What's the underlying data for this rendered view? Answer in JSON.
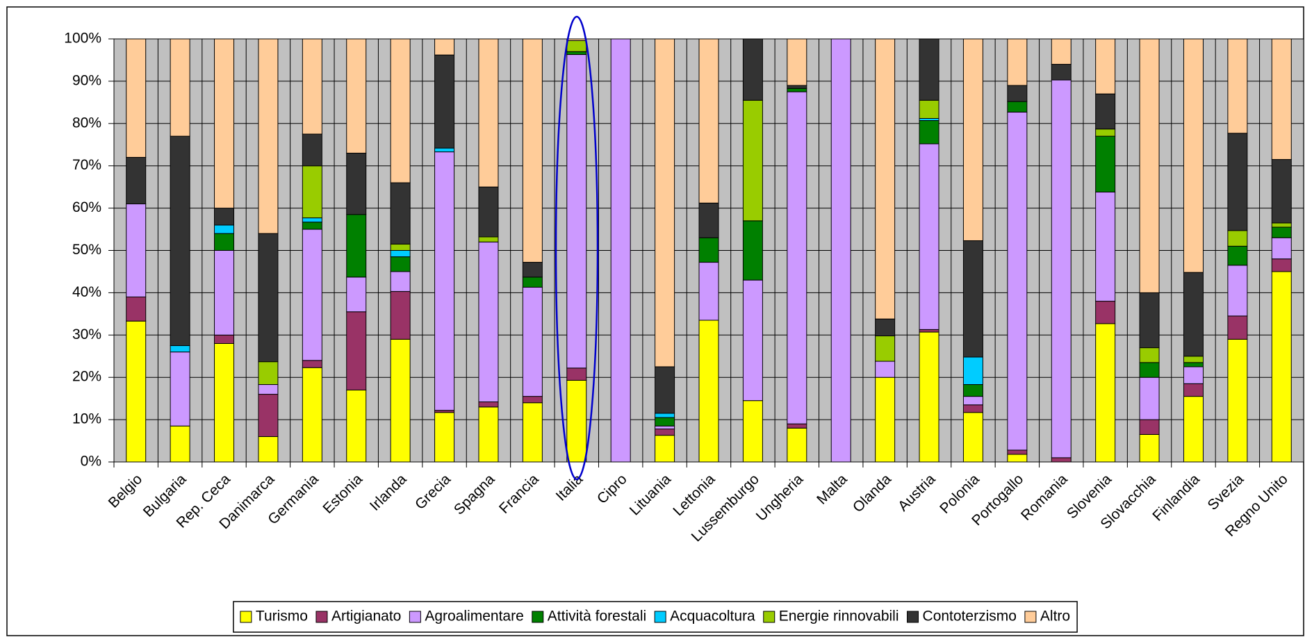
{
  "chart_data": {
    "type": "stacked_bar",
    "categories": [
      "Belgio",
      "Bulgaria",
      "Rep. Ceca",
      "Danimarca",
      "Germania",
      "Estonia",
      "Irlanda",
      "Grecia",
      "Spagna",
      "Francia",
      "Italia",
      "Cipro",
      "Lituania",
      "Lettonia",
      "Lussemburgo",
      "Ungheria",
      "Malta",
      "Olanda",
      "Austria",
      "Polonia",
      "Portogallo",
      "Romania",
      "Slovenia",
      "Slovacchia",
      "Finlandia",
      "Svezia",
      "Regno Unito"
    ],
    "series": [
      {
        "name": "Turismo",
        "color": "#ffff00",
        "values": [
          33.3,
          8.5,
          28,
          6,
          22.3,
          17,
          29,
          11.7,
          13,
          14,
          19.3,
          0,
          6.3,
          33.5,
          14.5,
          8,
          0,
          20,
          30.7,
          11.7,
          1.8,
          0,
          32.7,
          6.5,
          15.5,
          29,
          45
        ]
      },
      {
        "name": "Artigianato",
        "color": "#993366",
        "values": [
          5.7,
          0,
          2,
          10,
          1.7,
          18.5,
          11.3,
          0.5,
          1.2,
          1.5,
          2.9,
          0,
          1.5,
          0,
          0,
          1,
          0,
          0,
          0.6,
          1.8,
          1,
          1,
          5.3,
          3.5,
          3,
          5.5,
          3
        ]
      },
      {
        "name": "Agroalimentare",
        "color": "#cc99ff",
        "values": [
          22,
          17.5,
          20,
          2.3,
          31,
          8.2,
          4.7,
          61.1,
          37.8,
          25.8,
          74.1,
          100,
          0.7,
          13.7,
          28.5,
          78.5,
          100,
          3.8,
          43.9,
          2,
          79.9,
          89.3,
          25.8,
          10,
          4,
          12,
          5
        ]
      },
      {
        "name": "Attività forestali",
        "color": "#008000",
        "values": [
          0,
          0,
          4,
          0,
          1.7,
          14.8,
          3.5,
          0,
          0,
          2.4,
          0.7,
          0,
          2,
          5.8,
          14,
          0.8,
          0,
          0,
          5.5,
          2.8,
          2.5,
          0,
          13.2,
          3.5,
          1,
          4.5,
          2.5
        ]
      },
      {
        "name": "Acquacoltura",
        "color": "#00ccff",
        "values": [
          0,
          1.5,
          2,
          0,
          1,
          0,
          1.5,
          0.9,
          0,
          0,
          0,
          0,
          1,
          0,
          0,
          0,
          0,
          0,
          0.5,
          6.5,
          0,
          0,
          0,
          0,
          0,
          0,
          0
        ]
      },
      {
        "name": "Energie rinnovabili",
        "color": "#99cc00",
        "values": [
          0,
          0,
          0,
          5.4,
          12.3,
          0,
          1.5,
          0,
          1.2,
          0,
          2.6,
          0,
          0,
          0,
          28.5,
          0,
          0,
          6,
          4.3,
          0,
          0,
          0,
          1.7,
          3.5,
          1.5,
          3.7,
          1
        ]
      },
      {
        "name": "Contoterzismo",
        "color": "#333333",
        "values": [
          11,
          49.5,
          4,
          30.3,
          7.5,
          14.5,
          14.5,
          22,
          11.8,
          3.5,
          0,
          0,
          11,
          8.2,
          14.5,
          0.7,
          0,
          4,
          14.5,
          27.5,
          3.8,
          3.7,
          8.3,
          13,
          19.8,
          23,
          15
        ]
      },
      {
        "name": "Altro",
        "color": "#ffcc99",
        "values": [
          28,
          23,
          40,
          46,
          22.5,
          27,
          34,
          3.8,
          35,
          52.8,
          0.4,
          0,
          77.5,
          38.8,
          0,
          11,
          0,
          66.2,
          0,
          47.7,
          11,
          6,
          13,
          60,
          55.2,
          22.3,
          28.5
        ]
      }
    ],
    "ylim": [
      0,
      100
    ],
    "yticks": [
      {
        "value": 0,
        "label": "0%"
      },
      {
        "value": 10,
        "label": "10%"
      },
      {
        "value": 20,
        "label": "20%"
      },
      {
        "value": 30,
        "label": "30%"
      },
      {
        "value": 40,
        "label": "40%"
      },
      {
        "value": 50,
        "label": "50%"
      },
      {
        "value": 60,
        "label": "60%"
      },
      {
        "value": 70,
        "label": "70%"
      },
      {
        "value": 80,
        "label": "80%"
      },
      {
        "value": 90,
        "label": "90%"
      },
      {
        "value": 100,
        "label": "100%"
      }
    ],
    "grid": true,
    "plot_background": "#c0c0c0",
    "legend": "bottom"
  }
}
